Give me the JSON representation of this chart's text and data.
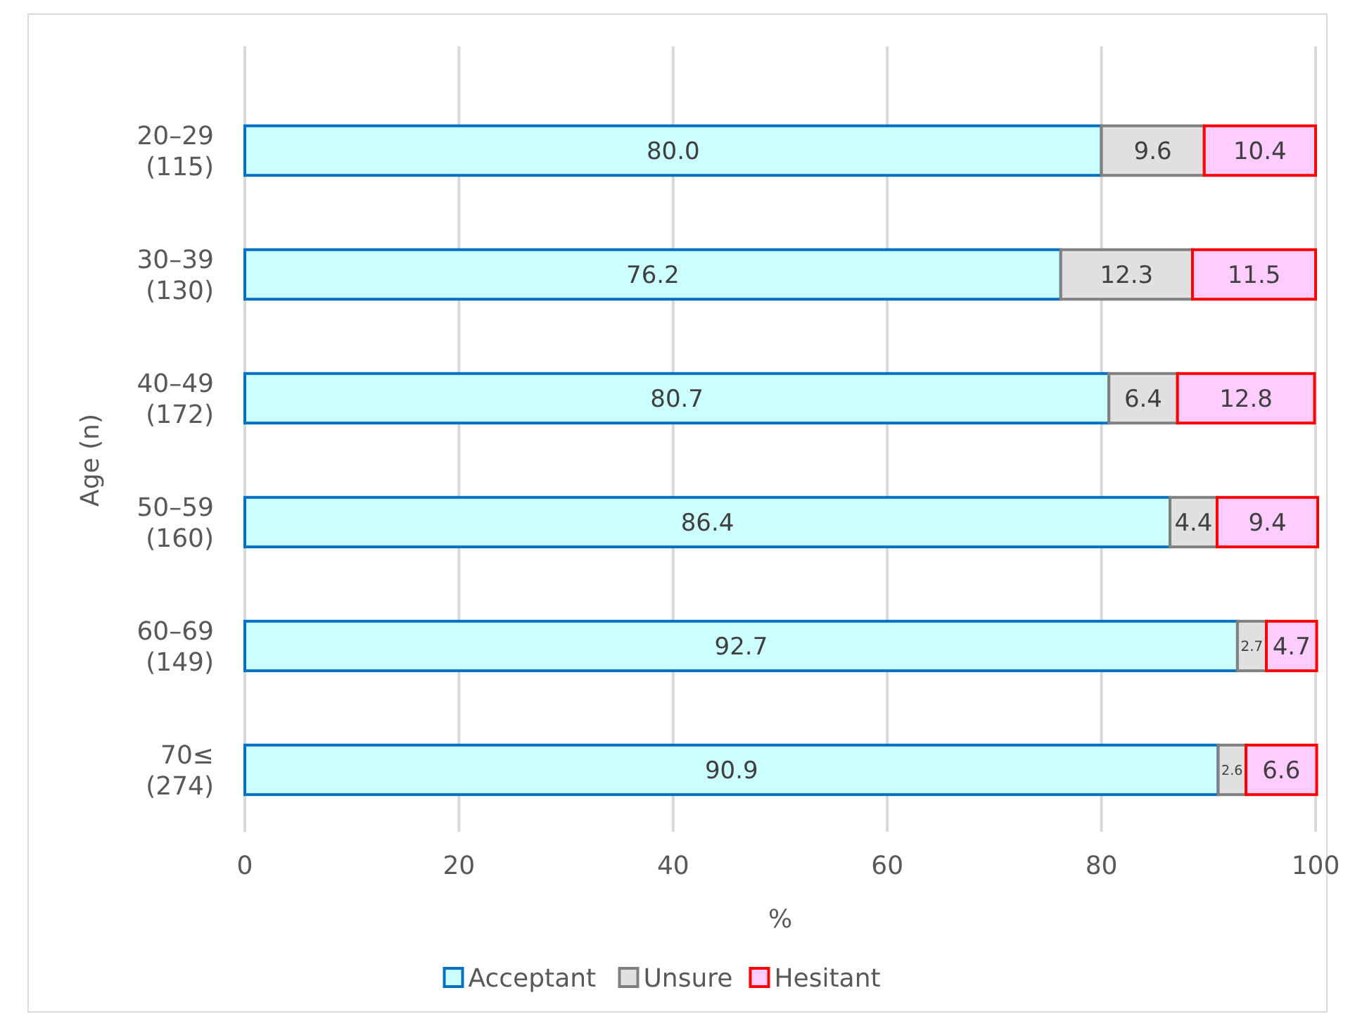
{
  "chart_data": {
    "type": "bar",
    "orientation": "horizontal",
    "stacked": true,
    "xlabel": "%",
    "ylabel": "Age (n)",
    "categories": [
      "20–29\n(115)",
      "30–39\n(130)",
      "40–49\n(172)",
      "50–59\n(160)",
      "60–69\n(149)",
      "70≤\n(274)"
    ],
    "series": [
      {
        "name": "Acceptant",
        "color": "#ccffff",
        "values": [
          80.0,
          76.2,
          80.7,
          86.4,
          92.7,
          90.9
        ],
        "value_labels": [
          "80.0",
          "76.2",
          "80.7",
          "86.4",
          "92.7",
          "90.9"
        ]
      },
      {
        "name": "Unsure",
        "color": "#e0e0e0",
        "values": [
          9.6,
          12.3,
          6.4,
          4.4,
          2.7,
          2.6
        ]
      },
      {
        "name": "Hesitant",
        "color": "#ffccff",
        "values": [
          10.4,
          11.5,
          12.8,
          9.4,
          4.7,
          6.6
        ]
      }
    ],
    "xlim": [
      0,
      100
    ],
    "xticks": [
      0,
      20,
      40,
      60,
      80,
      100
    ],
    "grid": "x",
    "legend": "bottom",
    "data_labels": true
  }
}
